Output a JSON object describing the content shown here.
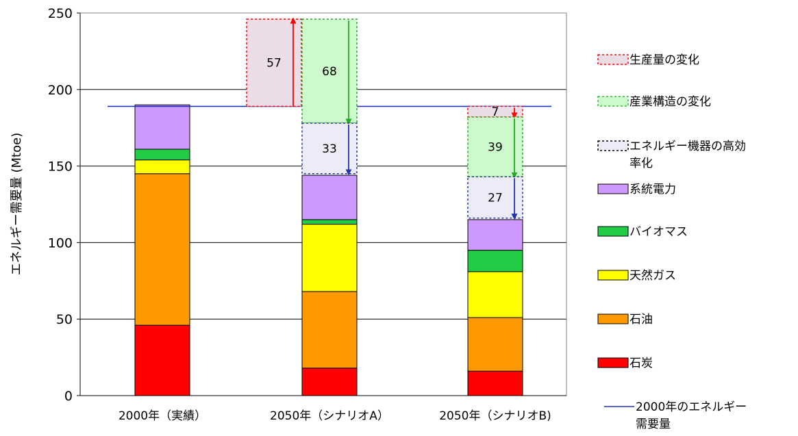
{
  "chart_data": {
    "type": "bar",
    "subtype": "stacked",
    "ylabel": "エネルギー需要量 (Mtoe)",
    "ylim": [
      0,
      250
    ],
    "yticks": [
      0,
      50,
      100,
      150,
      200,
      250
    ],
    "grid": true,
    "categories": [
      "2000年（実績）",
      "2050年（シナリオA）",
      "2050年（シナリオB)"
    ],
    "series": [
      {
        "name": "石炭",
        "color": "#ff0000",
        "values": [
          46,
          18,
          16
        ]
      },
      {
        "name": "石油",
        "color": "#ff9900",
        "values": [
          99,
          50,
          35
        ]
      },
      {
        "name": "天然ガス",
        "color": "#ffff00",
        "values": [
          9,
          44,
          30
        ]
      },
      {
        "name": "バイオマス",
        "color": "#22cc44",
        "values": [
          7,
          3,
          14
        ]
      },
      {
        "name": "系統電力",
        "color": "#cc99ff",
        "values": [
          29,
          29,
          20
        ]
      }
    ],
    "reference_line": {
      "name": "2000年のエネルギー需要量",
      "value": 189,
      "color": "#2233bb"
    },
    "change_boxes": [
      {
        "category_index": 1,
        "name": "生産量の変化",
        "label": "57",
        "from": 189,
        "to": 246,
        "direction": "up",
        "color": "#ff0000",
        "fill": "#eadde6"
      },
      {
        "category_index": 1,
        "name": "産業構造の変化",
        "label": "68",
        "from": 246,
        "to": 178,
        "direction": "down",
        "color": "#22aa22",
        "fill": "#ccfacc"
      },
      {
        "category_index": 1,
        "name": "エネルギー機器の高効率化",
        "label": "33",
        "from": 178,
        "to": 145,
        "direction": "down",
        "color": "#2233aa",
        "fill": "#ececf8"
      },
      {
        "category_index": 2,
        "name": "生産量の変化",
        "label": "7",
        "from": 189,
        "to": 182,
        "direction": "down",
        "color": "#ff0000",
        "fill": "#eadde6"
      },
      {
        "category_index": 2,
        "name": "産業構造の変化",
        "label": "39",
        "from": 182,
        "to": 143,
        "direction": "down",
        "color": "#22aa22",
        "fill": "#ccfacc"
      },
      {
        "category_index": 2,
        "name": "エネルギー機器の高効率化",
        "label": "27",
        "from": 143,
        "to": 116,
        "direction": "down",
        "color": "#2233aa",
        "fill": "#ececf8"
      }
    ],
    "legend": {
      "placement": "right",
      "entries": [
        {
          "label": "生産量の変化",
          "kind": "dashed-box",
          "border": "#ff0000",
          "fill": "#eadde6"
        },
        {
          "label": "産業構造の変化",
          "kind": "dashed-box",
          "border": "#33bb33",
          "fill": "#ccfacc"
        },
        {
          "label": "エネルギー機器の高効率化",
          "kind": "dashed-box",
          "border": "#000000",
          "fill": "#ececf8"
        },
        {
          "label": "系統電力",
          "kind": "box",
          "fill": "#cc99ff"
        },
        {
          "label": "バイオマス",
          "kind": "box",
          "fill": "#22cc44"
        },
        {
          "label": "天然ガス",
          "kind": "box",
          "fill": "#ffff00"
        },
        {
          "label": "石油",
          "kind": "box",
          "fill": "#ff9900"
        },
        {
          "label": "石炭",
          "kind": "box",
          "fill": "#ff0000"
        },
        {
          "label": "2000年のエネルギー需要量",
          "kind": "line",
          "color": "#2233bb"
        }
      ]
    }
  }
}
